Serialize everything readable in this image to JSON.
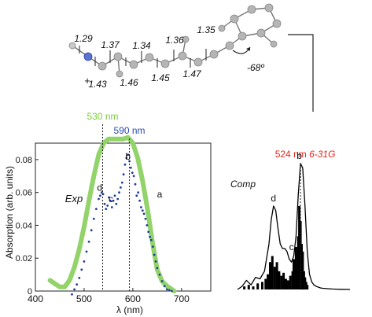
{
  "colors": {
    "exp_curve": "#92d36a",
    "exp_points": "#1f3d9c",
    "exp_label": "#2a4bb0",
    "comp_line": "#000000",
    "comp_sticks": "#000000",
    "annotation_red": "#e1261c",
    "wavelength_green": "#7acc3c",
    "wavelength_blue": "#2a4bb0",
    "nitrogen_atom": "#5a72d4",
    "carbon_atom": "#b5b5b5"
  },
  "molecule": {
    "bond_lengths": [
      "1.29",
      "1.43",
      "1.37",
      "1.46",
      "1.34",
      "1.45",
      "1.36",
      "1.47",
      "1.35"
    ],
    "charge": "+",
    "torsion_angle": "-68º"
  },
  "chart_data": [
    {
      "type": "line",
      "xlabel": "λ (nm)",
      "ylabel": "Absorption (arb. units)",
      "xlim": [
        400,
        760
      ],
      "ylim": [
        0,
        0.09
      ],
      "xticks": [
        400,
        500,
        600,
        700
      ],
      "xtick_labels": [
        "400",
        "500",
        "600",
        "700"
      ],
      "yticks": [
        0,
        0.02,
        0.04,
        0.06,
        0.08
      ],
      "ytick_labels": [
        "0",
        "0.02",
        "0.04",
        "0.06",
        "0.08"
      ],
      "grid": false,
      "series_label": "Exp",
      "series": [
        {
          "style": "thick-line",
          "x": [
            430,
            440,
            450,
            460,
            470,
            480,
            490,
            500,
            510,
            520,
            530,
            540,
            550,
            560,
            570,
            580,
            590,
            600,
            610,
            620,
            630,
            640,
            650,
            660,
            670,
            680,
            685
          ],
          "y": [
            0.0065,
            0.0045,
            0.0025,
            0.0025,
            0.0065,
            0.0145,
            0.0255,
            0.039,
            0.055,
            0.07,
            0.083,
            0.09,
            0.0925,
            0.0925,
            0.0925,
            0.0925,
            0.0935,
            0.09,
            0.081,
            0.067,
            0.05,
            0.03,
            0.013,
            0.006,
            0.003,
            0.001,
            0
          ]
        },
        {
          "style": "dots",
          "x": [
            475,
            480,
            485,
            490,
            495,
            500,
            505,
            510,
            515,
            520,
            525,
            530,
            533,
            536,
            539,
            542,
            545,
            548,
            551,
            554,
            557,
            560,
            563,
            566,
            569,
            572,
            575,
            578,
            581,
            584,
            587,
            590,
            593,
            596,
            599,
            602,
            605,
            608,
            611,
            614,
            617,
            620,
            623,
            626,
            629,
            632,
            635,
            638,
            641,
            644,
            647,
            650,
            655,
            660,
            665,
            670,
            675,
            680
          ],
          "y": [
            -0.002,
            0.001,
            0.004,
            0.008,
            0.013,
            0.018,
            0.024,
            0.03,
            0.037,
            0.044,
            0.05,
            0.056,
            0.058,
            0.06,
            0.059,
            0.053,
            0.05,
            0.052,
            0.057,
            0.055,
            0.051,
            0.055,
            0.058,
            0.053,
            0.056,
            0.06,
            0.063,
            0.066,
            0.071,
            0.077,
            0.081,
            0.083,
            0.079,
            0.075,
            0.072,
            0.07,
            0.065,
            0.058,
            0.06,
            0.055,
            0.051,
            0.049,
            0.047,
            0.044,
            0.04,
            0.036,
            0.033,
            0.031,
            0.027,
            0.022,
            0.018,
            0.014,
            0.01,
            0.006,
            0.003,
            0.001,
            0.0005,
            0
          ]
        }
      ],
      "markers": [
        {
          "x": 538,
          "label": "530",
          "unit": "nm"
        },
        {
          "x": 593,
          "label": "590",
          "unit": "nm"
        }
      ],
      "peak_labels": [
        {
          "label": "d",
          "x": 532,
          "y": 0.061
        },
        {
          "label": "c",
          "x": 555,
          "y": 0.054
        },
        {
          "label": "b",
          "x": 590,
          "y": 0.08
        },
        {
          "label": "a",
          "x": 655,
          "y": 0.057
        }
      ]
    },
    {
      "type": "line",
      "series_label": "Comp",
      "xlim": [
        0,
        1
      ],
      "ylim": [
        0,
        1
      ],
      "series": [
        {
          "style": "line",
          "x": [
            0,
            0.04,
            0.08,
            0.12,
            0.16,
            0.2,
            0.24,
            0.28,
            0.3,
            0.32,
            0.34,
            0.36,
            0.38,
            0.4,
            0.42,
            0.44,
            0.46,
            0.48,
            0.5,
            0.52,
            0.54,
            0.56,
            0.58,
            0.6,
            0.62,
            0.64,
            0.66,
            0.68,
            0.7,
            0.72,
            0.74,
            0.76,
            0.8,
            0.84,
            0.88,
            0.92,
            1.0
          ],
          "y": [
            0,
            0.02,
            0.06,
            0.03,
            0.08,
            0.07,
            0.12,
            0.3,
            0.46,
            0.55,
            0.52,
            0.4,
            0.3,
            0.27,
            0.27,
            0.25,
            0.2,
            0.18,
            0.22,
            0.35,
            0.62,
            0.83,
            0.8,
            0.55,
            0.25,
            0.1,
            0.05,
            0.03,
            0.02,
            0.015,
            0.01,
            0.008,
            0.005,
            0.003,
            0.002,
            0.001,
            0
          ]
        },
        {
          "style": "sticks",
          "x": [
            0.06,
            0.1,
            0.14,
            0.18,
            0.22,
            0.25,
            0.27,
            0.29,
            0.31,
            0.33,
            0.35,
            0.37,
            0.39,
            0.41,
            0.43,
            0.45,
            0.47,
            0.49,
            0.5,
            0.51,
            0.52,
            0.53,
            0.54,
            0.55,
            0.56,
            0.57,
            0.58,
            0.59,
            0.6,
            0.61,
            0.62
          ],
          "y": [
            0.02,
            0.03,
            0.02,
            0.04,
            0.05,
            0.07,
            0.1,
            0.18,
            0.22,
            0.15,
            0.18,
            0.12,
            0.09,
            0.11,
            0.07,
            0.06,
            0.09,
            0.12,
            0.2,
            0.15,
            0.28,
            0.17,
            0.35,
            0.55,
            0.45,
            0.3,
            0.25,
            0.12,
            0.08,
            0.05,
            0.03
          ]
        }
      ],
      "marker": {
        "x": 0.56,
        "label": "524",
        "unit": "nm",
        "basis": "6-31G"
      },
      "peak_labels": [
        {
          "label": "d",
          "x": 0.32,
          "y": 0.58
        },
        {
          "label": "c",
          "x": 0.48,
          "y": 0.26
        },
        {
          "label": "b",
          "x": 0.55,
          "y": 0.86
        }
      ]
    }
  ]
}
